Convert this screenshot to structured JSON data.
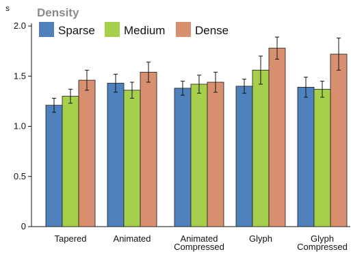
{
  "chart_data": {
    "type": "bar",
    "title": "",
    "ylabel": "s",
    "xlabel": "",
    "ylim": [
      0,
      2.0
    ],
    "yticks": [
      0,
      0.5,
      1.0,
      1.5,
      2.0
    ],
    "ytick_labels": [
      "0",
      "0.5",
      "1.0",
      "1.5",
      "2.0"
    ],
    "grid": false,
    "legend": {
      "title": "Density",
      "placement": "top-left"
    },
    "categories": [
      [
        "Tapered"
      ],
      [
        "Animated"
      ],
      [
        "Animated",
        "Compressed"
      ],
      [
        "Glyph"
      ],
      [
        "Glyph",
        "Compressed"
      ]
    ],
    "series": [
      {
        "name": "Sparse",
        "color": "#4f81bd",
        "values": [
          1.21,
          1.43,
          1.38,
          1.4,
          1.39
        ],
        "errors": [
          0.07,
          0.09,
          0.07,
          0.07,
          0.1
        ]
      },
      {
        "name": "Medium",
        "color": "#a6d04c",
        "values": [
          1.3,
          1.36,
          1.42,
          1.56,
          1.37
        ],
        "errors": [
          0.07,
          0.08,
          0.09,
          0.14,
          0.08
        ]
      },
      {
        "name": "Dense",
        "color": "#d99070",
        "values": [
          1.46,
          1.54,
          1.44,
          1.78,
          1.72
        ],
        "errors": [
          0.1,
          0.1,
          0.1,
          0.11,
          0.16
        ]
      }
    ]
  }
}
